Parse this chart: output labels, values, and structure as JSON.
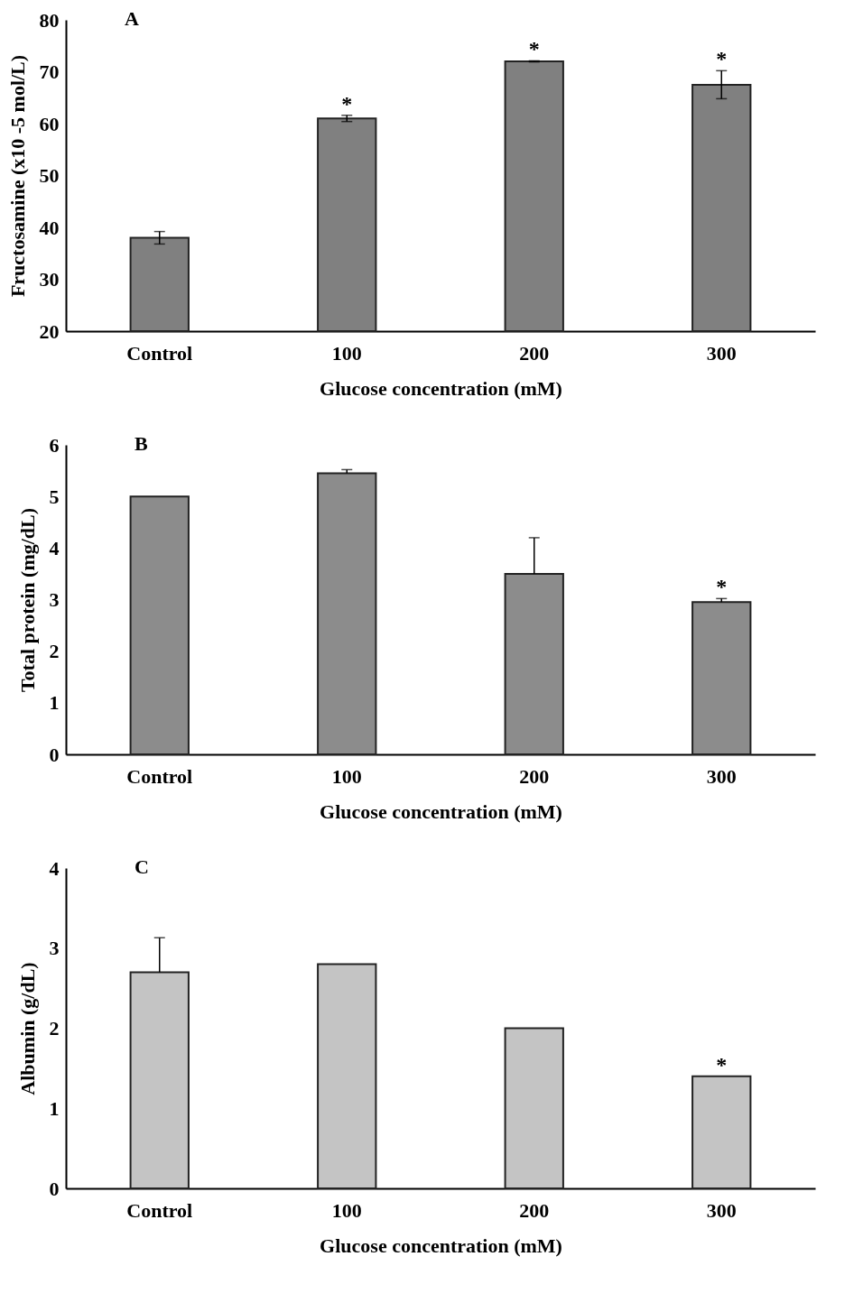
{
  "chart_data": [
    {
      "type": "bar",
      "title": "A",
      "xlabel": "Glucose concentration (mM)",
      "ylabel": "Fructosamine (x10 -5 mol/L)",
      "categories": [
        "Control",
        "100",
        "200",
        "300"
      ],
      "values": [
        38,
        61,
        72,
        67.5
      ],
      "color": "#808080",
      "errors": [
        1.2,
        0.6,
        0.1,
        2.7
      ],
      "ylim": [
        20,
        80
      ],
      "yticks": [
        20,
        30,
        40,
        50,
        60,
        70,
        80
      ],
      "annotations": [
        {
          "text": "*",
          "x": "100",
          "y": 61.6
        },
        {
          "text": "*",
          "x": "200",
          "y": 72.1
        },
        {
          "text": "*",
          "x": "300",
          "y": 70.2
        }
      ]
    },
    {
      "type": "bar",
      "title": "B",
      "xlabel": "Glucose concentration (mM)",
      "ylabel": "Total protein (mg/dL)",
      "categories": [
        "Control",
        "100",
        "200",
        "300"
      ],
      "values": [
        5.0,
        5.45,
        3.5,
        2.95
      ],
      "color": "#8c8c8c",
      "errors": [
        null,
        [
          5.45,
          5.52
        ],
        [
          3.5,
          4.2
        ],
        [
          2.95,
          3.02
        ]
      ],
      "ylim": [
        0,
        6
      ],
      "yticks": [
        0,
        1,
        2,
        3,
        4,
        5,
        6
      ],
      "annotations": [
        {
          "text": "*",
          "x": "300",
          "y": 3.02
        }
      ]
    },
    {
      "type": "bar",
      "title": "C",
      "xlabel": "Glucose concentration (mM)",
      "ylabel": "Albumin (g/dL)",
      "categories": [
        "Control",
        "100",
        "200",
        "300"
      ],
      "values": [
        2.7,
        2.8,
        2.0,
        1.4
      ],
      "color": "#c4c4c4",
      "errors": [
        [
          2.7,
          3.13
        ],
        null,
        null,
        null
      ],
      "ylim": [
        0,
        4
      ],
      "yticks": [
        0,
        1,
        2,
        3,
        4
      ],
      "annotations": [
        {
          "text": "*",
          "x": "300",
          "y": 1.4
        }
      ]
    }
  ]
}
